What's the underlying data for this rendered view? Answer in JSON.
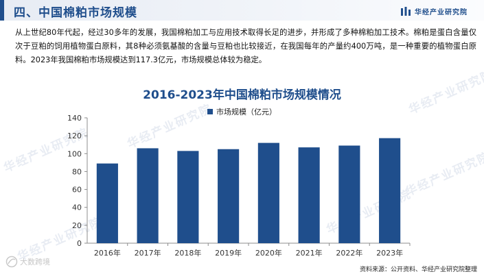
{
  "header": {
    "title": "四、中国棉粕市场规模",
    "brand_name": "华经产业研究院"
  },
  "intro_text": "从上世纪80年代起，经过30多年的发展，我国棉粕加工与应用技术取得长足的进步，并形成了多种棉粕加工技术。棉粕是蛋白含量仅次于豆粕的饲用植物蛋白原料，其8种必须氨基酸的含量与豆粕也比较接近，在我国每年的产量约400万吨，是一种重要的植物蛋白原料。2023年我国棉粕市场规模达到117.3亿元，市场规模总体较为稳定。",
  "watermark_text": "华经产业研究院",
  "corner_mark_text": "大数跨境",
  "source_text": "资料来源：公开资料、华经产业研究院整理",
  "colors": {
    "accent": "#1f4e8c",
    "bar": "#1f4e8c"
  },
  "chart_data": {
    "type": "bar",
    "title": "2016-2023年中国棉粕市场规模情况",
    "xlabel": "",
    "ylabel": "",
    "categories": [
      "2016年",
      "2017年",
      "2018年",
      "2019年",
      "2020年",
      "2021年",
      "2022年",
      "2023年"
    ],
    "series": [
      {
        "name": "市场规模（亿元）",
        "values": [
          89,
          106,
          103,
          105,
          112,
          107,
          109,
          117.3
        ]
      }
    ],
    "ylim": [
      0,
      140
    ],
    "yticks": [
      0,
      20,
      40,
      60,
      80,
      100,
      120,
      140
    ],
    "grid": false,
    "legend_position": "top-center"
  }
}
